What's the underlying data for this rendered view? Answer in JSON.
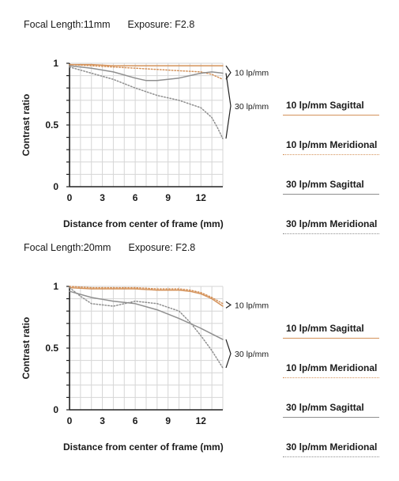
{
  "colors": {
    "sagittal_10": "#d4925a",
    "meridional_10": "#d4925a",
    "sagittal_30": "#8f8f8f",
    "meridional_30": "#8f8f8f"
  },
  "chart_data": [
    {
      "type": "line",
      "title": "Focal Length:11mm",
      "subtitle": "Exposure: F2.8",
      "xlabel": "Distance from center of frame (mm)",
      "ylabel": "Contrast ratio",
      "xlim": [
        0,
        14
      ],
      "ylim": [
        0,
        1
      ],
      "xticks": [
        "0",
        "3",
        "6",
        "9",
        "12"
      ],
      "yticks": [
        "0",
        "0.5",
        "1"
      ],
      "grid": true,
      "annotations": [
        "10 lp/mm",
        "30 lp/mm"
      ],
      "series": [
        {
          "name": "10 lp/mm Sagittal",
          "style": "solid",
          "color": "#d4925a",
          "x": [
            0,
            2,
            4,
            6,
            8,
            10,
            12,
            14
          ],
          "y": [
            0.99,
            0.99,
            0.98,
            0.98,
            0.98,
            0.98,
            0.98,
            0.98
          ]
        },
        {
          "name": "10 lp/mm Meridional",
          "style": "dotted",
          "color": "#d4925a",
          "x": [
            0,
            2,
            4,
            6,
            8,
            10,
            12,
            13,
            14
          ],
          "y": [
            0.99,
            0.98,
            0.97,
            0.96,
            0.95,
            0.94,
            0.93,
            0.91,
            0.87
          ]
        },
        {
          "name": "30 lp/mm Sagittal",
          "style": "solid",
          "color": "#8f8f8f",
          "x": [
            0,
            2,
            4,
            6,
            7,
            8,
            10,
            12,
            13,
            14
          ],
          "y": [
            0.98,
            0.96,
            0.93,
            0.88,
            0.86,
            0.86,
            0.88,
            0.92,
            0.93,
            0.92
          ]
        },
        {
          "name": "30 lp/mm Meridional",
          "style": "dotted",
          "color": "#8f8f8f",
          "x": [
            0,
            2,
            4,
            6,
            8,
            10,
            12,
            13,
            13.5,
            14
          ],
          "y": [
            0.97,
            0.92,
            0.87,
            0.8,
            0.74,
            0.7,
            0.64,
            0.56,
            0.48,
            0.39
          ]
        }
      ]
    },
    {
      "type": "line",
      "title": "Focal Length:20mm",
      "subtitle": "Exposure: F2.8",
      "xlabel": "Distance from center of frame (mm)",
      "ylabel": "Contrast ratio",
      "xlim": [
        0,
        14
      ],
      "ylim": [
        0,
        1
      ],
      "xticks": [
        "0",
        "3",
        "6",
        "9",
        "12"
      ],
      "yticks": [
        "0",
        "0.5",
        "1"
      ],
      "grid": true,
      "annotations": [
        "10 lp/mm",
        "30 lp/mm"
      ],
      "series": [
        {
          "name": "10 lp/mm Sagittal",
          "style": "solid",
          "color": "#d4925a",
          "x": [
            0,
            2,
            4,
            6,
            8,
            10,
            11,
            12,
            13,
            14
          ],
          "y": [
            0.99,
            0.98,
            0.98,
            0.98,
            0.97,
            0.97,
            0.96,
            0.94,
            0.9,
            0.84
          ]
        },
        {
          "name": "10 lp/mm Meridional",
          "style": "dotted",
          "color": "#d4925a",
          "x": [
            0,
            2,
            4,
            6,
            8,
            10,
            11,
            12,
            13,
            14
          ],
          "y": [
            1.0,
            0.99,
            0.99,
            0.99,
            0.98,
            0.98,
            0.97,
            0.95,
            0.91,
            0.86
          ]
        },
        {
          "name": "30 lp/mm Sagittal",
          "style": "solid",
          "color": "#8f8f8f",
          "x": [
            0,
            2,
            4,
            6,
            8,
            10,
            12,
            14
          ],
          "y": [
            0.96,
            0.91,
            0.88,
            0.86,
            0.81,
            0.74,
            0.66,
            0.57
          ]
        },
        {
          "name": "30 lp/mm Meridional",
          "style": "dotted",
          "color": "#8f8f8f",
          "x": [
            0,
            1,
            2,
            4,
            6,
            8,
            10,
            11,
            12,
            13,
            14
          ],
          "y": [
            0.99,
            0.92,
            0.86,
            0.84,
            0.88,
            0.86,
            0.8,
            0.71,
            0.6,
            0.48,
            0.34
          ]
        }
      ]
    }
  ]
}
